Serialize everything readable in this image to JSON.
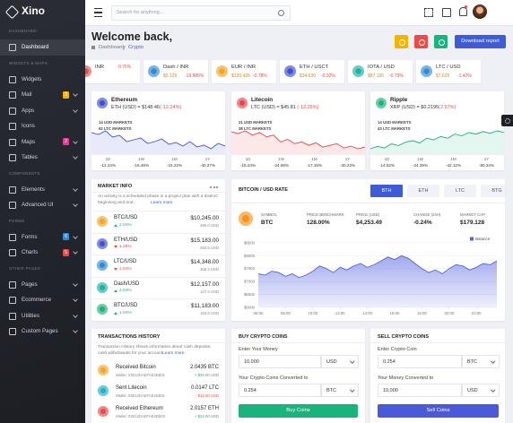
{
  "brand": "Xino",
  "search": "Search for anything...",
  "sidebar": [
    {
      "header": "DASHBOARD"
    },
    {
      "label": "Dashboard",
      "active": true
    },
    {
      "header": "WIDGETS & MAPS"
    },
    {
      "label": "Widgets"
    },
    {
      "label": "Mail",
      "badge": "3",
      "badge_color": "#f5b400"
    },
    {
      "label": "Apps"
    },
    {
      "label": "Icons"
    },
    {
      "label": "Maps",
      "badge": "2",
      "badge_color": "#e8388f"
    },
    {
      "label": "Tables"
    },
    {
      "header": "COMPONENTS"
    },
    {
      "label": "Elements"
    },
    {
      "label": "Advanced UI"
    },
    {
      "header": "FORMS"
    },
    {
      "label": "Forms",
      "badge": "6",
      "badge_color": "#2f8bd8"
    },
    {
      "label": "Charts",
      "badge": "5",
      "badge_color": "#e84a4a"
    },
    {
      "header": "OTHER PAGES"
    },
    {
      "label": "Pages"
    },
    {
      "label": "Ecommerce"
    },
    {
      "label": "Utilities"
    },
    {
      "label": "Custom Pages"
    }
  ],
  "header": {
    "title": "Welcome back,",
    "breadcrumb": [
      "Dashboard",
      "Crypto"
    ],
    "button": "Download report"
  },
  "tickers": [
    {
      "pair": "INR",
      "change": "0.76%",
      "color": "#e84a4a"
    },
    {
      "pair": "Dash / INR",
      "price": "$5.129",
      "change": "-19.885%",
      "color": "#2f8bd8"
    },
    {
      "pair": "EUR / INR",
      "price": "$130.425",
      "change": "-0.78%",
      "color": "#f5a623"
    },
    {
      "pair": "ETH / USCT",
      "price": "$34.620",
      "change": "-0.32%",
      "color": "#3e4fd1"
    },
    {
      "pair": "IOTA / USD",
      "price": "$87.126",
      "change": "-0.79%",
      "color": "#1ab3a0"
    },
    {
      "pair": "LTC / USD",
      "price": "$7.625",
      "change": "-1.42%",
      "color": "#2f8bd8"
    }
  ],
  "periods": [
    "1D",
    "1W",
    "1M",
    "1Y"
  ],
  "coins": [
    {
      "name": "Ethereum",
      "quote": "ETH (USD) = $148.46",
      "change": "(-12.24%)",
      "markets": [
        "14 USD MARKETS",
        "62 LTC MARKETS"
      ],
      "color": "#3e4fd1",
      "values": [
        60,
        58,
        62,
        55,
        57,
        50,
        52,
        54,
        48,
        50,
        53,
        47,
        49,
        45,
        50,
        44,
        46,
        42,
        48,
        45
      ],
      "period_changes": [
        "-12.24%",
        "-16.48%",
        "-15.22%",
        "-40.27%"
      ]
    },
    {
      "name": "Litecoin",
      "quote": "LTC (USD) = $45.81",
      "change": "(-12.26%)",
      "markets": [
        "21 USD MARKETS",
        "38 LTC MARKETS"
      ],
      "color": "#e8454a",
      "values": [
        62,
        60,
        63,
        58,
        61,
        56,
        58,
        50,
        53,
        48,
        50,
        46,
        49,
        44,
        46,
        48,
        43,
        45,
        42,
        44
      ],
      "period_changes": [
        "-15.24%",
        "-24.68%",
        "-17.15%",
        "-30.23%"
      ]
    },
    {
      "name": "Ripple",
      "quote": "XRP (USD) = $0.2195",
      "change": "(2.97%)",
      "markets": [
        "14 USD MARKETS",
        "43 LTC MARKETS"
      ],
      "color": "#1ab37a",
      "values": [
        42,
        45,
        43,
        48,
        46,
        50,
        52,
        49,
        55,
        53,
        57,
        55,
        60,
        58,
        62,
        60,
        63,
        61,
        64,
        62
      ],
      "period_changes": [
        "-14.52%",
        "-24.39%",
        "-42.12%",
        "-50.34%"
      ]
    }
  ],
  "market": {
    "title": "MARKET INFO",
    "description": "An activity is a scheduled phase in a project plan with a distinct beginning and end.",
    "link": "Learn more",
    "rows": [
      {
        "pair": "BTC/USD",
        "price": "$10,245.00",
        "change": "2.04%",
        "volume": "380.0 USD",
        "up": true,
        "color": "#f5a623"
      },
      {
        "pair": "ETH/USD",
        "price": "$15,183.00",
        "change": "1.25%",
        "volume": "283.5 USD",
        "up": false,
        "color": "#3e4fd1"
      },
      {
        "pair": "LTC/USD",
        "price": "$14,348.00",
        "change": "1.04%",
        "volume": "368.2 USD",
        "up": false,
        "color": "#2f8bd8"
      },
      {
        "pair": "Dash/USD",
        "price": "$12,157.00",
        "change": "2.04%",
        "volume": "127.3 USD",
        "up": true,
        "color": "#1ab3a0"
      },
      {
        "pair": "BTC/USD",
        "price": "$11,183.00",
        "change": "1.04%",
        "volume": "160.8 USD",
        "up": true,
        "color": "#1ab37a"
      }
    ]
  },
  "chart_data": {
    "type": "area",
    "title": "BITCOIN / USD RATE",
    "tabs": [
      "BTH",
      "ETH",
      "LTC",
      "BTG"
    ],
    "active_tab": 0,
    "stats": [
      {
        "label": "SYMBOL",
        "value": "BTC"
      },
      {
        "label": "PRICE BENCHMARK",
        "value": "128.00%"
      },
      {
        "label": "PRICE (USD)",
        "value": "$4,253.49"
      },
      {
        "label": "CHANGE (24H)",
        "value": "-0.24%"
      },
      {
        "label": "MARKET CAP",
        "value": "$179.128"
      }
    ],
    "x": [
      6,
      6.5,
      7,
      7.5,
      8,
      8.5,
      9,
      9.5,
      10,
      10.5,
      11,
      11.5,
      12,
      12.5,
      13,
      13.5,
      14,
      14.5,
      15,
      15.5,
      16,
      16.5,
      17,
      17.5,
      18,
      18.5,
      19,
      19.5,
      20,
      20.5,
      21,
      21.5,
      22,
      22.5,
      23,
      23.5
    ],
    "series": [
      {
        "name": "Balance",
        "color": "#5563de",
        "values": [
          7300,
          7250,
          7400,
          7350,
          7200,
          7300,
          7150,
          7250,
          7400,
          7600,
          7500,
          7350,
          7550,
          7450,
          7600,
          7700,
          7550,
          7650,
          7800,
          7950,
          7850,
          8000,
          7900,
          7700,
          7500,
          7350,
          7450,
          7300,
          7500,
          7650,
          7600,
          7450,
          7550,
          7700,
          7650,
          7800
        ]
      }
    ],
    "xlim": [
      6,
      23.5
    ],
    "xticks": [
      {
        "value": 6,
        "label": "06:00"
      },
      {
        "value": 8,
        "label": "08:00"
      },
      {
        "value": 10,
        "label": "10:00"
      },
      {
        "value": 12,
        "label": "12:00"
      },
      {
        "value": 14,
        "label": "14:00"
      },
      {
        "value": 16,
        "label": "16:00"
      },
      {
        "value": 18,
        "label": "18:00"
      },
      {
        "value": 20,
        "label": "20:00"
      },
      {
        "value": 22,
        "label": "22:00"
      }
    ],
    "ylim": [
      6000,
      8600
    ],
    "yticks": [
      {
        "value": 6000,
        "label": "$6000"
      },
      {
        "value": 6500,
        "label": "$6500"
      },
      {
        "value": 7000,
        "label": "$7000"
      },
      {
        "value": 7500,
        "label": "$7500"
      },
      {
        "value": 8000,
        "label": "$8000"
      },
      {
        "value": 8500,
        "label": "$8500"
      }
    ],
    "grid": true,
    "legend": "top-right"
  },
  "transactions": {
    "title": "TRANSACTIONS HISTORY",
    "description": "Transaction History shows information about cash deposits, cash withdrawals for your account",
    "link": "Learn more",
    "rows": [
      {
        "title": "Received Bitcoin",
        "wallet": "Wallet: 03E12DAEFAE4EB01",
        "amount": "2.0435 BTC",
        "usd": "+ $25.00 USD",
        "up": true,
        "color": "#f5a623"
      },
      {
        "title": "Sent Litecoin",
        "wallet": "Wallet: 03E12DAEFAE4EB01",
        "amount": "0.0147 LTC",
        "usd": "- $12.00 USD",
        "up": false,
        "color": "#1ab3c8"
      },
      {
        "title": "Received Ethereum",
        "wallet": "Wallet: 03E12DAEFAE4EB03",
        "amount": "2.0157 ETH",
        "usd": "+ $24.00 USD",
        "up": true,
        "color": "#e84a4a"
      }
    ]
  },
  "buy": {
    "title": "BUY CRYPTO COINS",
    "label1": "Enter Your Money",
    "input1": "10,000",
    "unit1": "USD",
    "label2": "Your Crypto Coins Converted to",
    "input2": "0.254",
    "unit2": "BTC",
    "button": "Buy Coins",
    "color": "#18b47b"
  },
  "sell": {
    "title": "SELL CRYPTO COINS",
    "label1": "Enter Crypto Coin",
    "input1": "0.254",
    "unit1": "BTC",
    "label2": "Your Money Converted to",
    "input2": "10,000",
    "unit2": "USD",
    "button": "Sell Coins",
    "color": "#4a5ad8"
  }
}
